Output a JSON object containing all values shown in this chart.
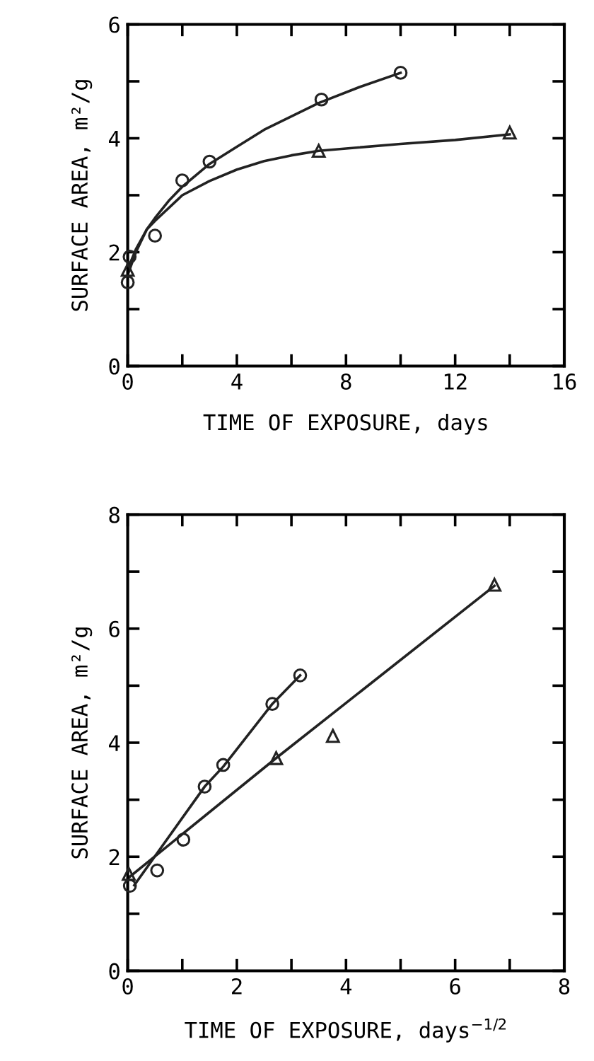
{
  "chart_data": [
    {
      "type": "scatter",
      "xlabel": "TIME OF EXPOSURE, days",
      "ylabel": "SURFACE AREA, m²/g",
      "xlim": [
        0,
        16
      ],
      "ylim": [
        0,
        6
      ],
      "xticks": [
        0,
        {
          "value": 2,
          "label": null
        },
        4,
        {
          "value": 6,
          "label": null
        },
        8,
        {
          "value": 10,
          "label": null
        },
        12,
        {
          "value": 14,
          "label": null
        },
        16
      ],
      "yticks": [
        0,
        {
          "value": 1,
          "label": null
        },
        2,
        {
          "value": 3,
          "label": null
        },
        4,
        {
          "value": 5,
          "label": null
        },
        6
      ],
      "grid": false,
      "legend": false,
      "series": [
        {
          "marker": "circle",
          "color": "#222222",
          "x": [
            0,
            0.07,
            1,
            2,
            3,
            7.1,
            10
          ],
          "values": [
            1.47,
            1.92,
            2.29,
            3.26,
            3.59,
            4.68,
            5.15
          ]
        },
        {
          "marker": "triangle",
          "color": "#222222",
          "x": [
            0,
            7,
            14
          ],
          "values": [
            1.69,
            3.78,
            4.1
          ]
        },
        {
          "type": "line",
          "marker": "none",
          "line_style": "solid",
          "color": "#222222",
          "x": [
            0,
            0.3,
            0.7,
            1,
            1.5,
            2,
            3,
            4,
            5,
            7,
            8.5,
            10
          ],
          "values": [
            1.6,
            2.0,
            2.4,
            2.6,
            2.9,
            3.15,
            3.55,
            3.85,
            4.15,
            4.62,
            4.9,
            5.15
          ]
        },
        {
          "type": "line",
          "marker": "none",
          "line_style": "solid",
          "color": "#222222",
          "x": [
            0,
            0.3,
            0.7,
            1,
            2,
            3,
            4,
            5,
            6,
            7,
            10,
            12,
            14
          ],
          "values": [
            1.7,
            2.05,
            2.4,
            2.55,
            3.0,
            3.25,
            3.45,
            3.6,
            3.7,
            3.78,
            3.9,
            3.97,
            4.07
          ]
        }
      ]
    },
    {
      "type": "scatter",
      "xlabel": "TIME OF EXPOSURE, days$^{−1/2}$",
      "ylabel": "SURFACE AREA, m²/g",
      "xlim": [
        0,
        8
      ],
      "ylim": [
        0,
        8
      ],
      "xticks": [
        0,
        {
          "value": 1,
          "label": null
        },
        2,
        {
          "value": 3,
          "label": null
        },
        4,
        {
          "value": 5,
          "label": null
        },
        6,
        {
          "value": 7,
          "label": null
        },
        8
      ],
      "yticks": [
        0,
        {
          "value": 1,
          "label": null
        },
        2,
        {
          "value": 3,
          "label": null
        },
        4,
        {
          "value": 5,
          "label": null
        },
        6,
        {
          "value": 7,
          "label": null
        },
        8
      ],
      "grid": false,
      "legend": false,
      "series": [
        {
          "marker": "circle",
          "color": "#222222",
          "x": [
            0.04,
            0.54,
            1.02,
            1.41,
            1.75,
            2.65,
            3.16
          ],
          "values": [
            1.49,
            1.76,
            2.3,
            3.23,
            3.61,
            4.68,
            5.18
          ]
        },
        {
          "marker": "triangle",
          "color": "#222222",
          "x": [
            0.02,
            2.72,
            3.76,
            6.72
          ],
          "values": [
            1.7,
            3.73,
            4.12,
            6.77
          ]
        },
        {
          "type": "line",
          "marker": "none",
          "line_style": "solid",
          "color": "#222222",
          "x": [
            0.12,
            1.41,
            1.75,
            2.65,
            3.16
          ],
          "values": [
            1.5,
            3.23,
            3.58,
            4.68,
            5.18
          ]
        },
        {
          "type": "line",
          "marker": "none",
          "line_style": "solid",
          "color": "#222222",
          "x": [
            0,
            2.72,
            6.72
          ],
          "values": [
            1.62,
            3.73,
            6.75
          ]
        }
      ]
    }
  ]
}
